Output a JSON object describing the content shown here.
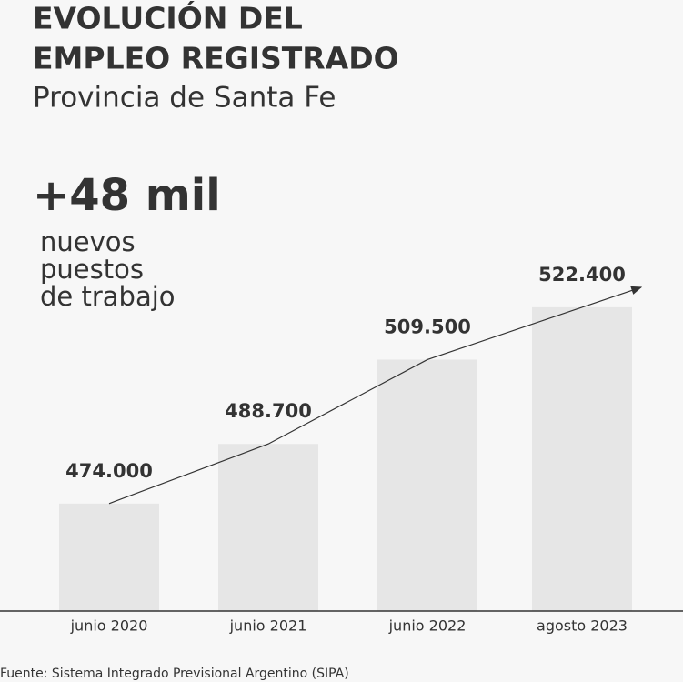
{
  "chart_data": {
    "type": "bar",
    "title": [
      "EVOLUCIÓN DEL",
      "EMPLEO REGISTRADO"
    ],
    "subtitle": "Provincia de Santa Fe",
    "annotation": {
      "headline": "+48 mil",
      "text": [
        "nuevos",
        "puestos",
        "de trabajo"
      ]
    },
    "categories": [
      "junio 2020",
      "junio 2021",
      "junio 2022",
      "agosto 2023"
    ],
    "values": [
      474000,
      488700,
      509500,
      522400
    ],
    "value_labels": [
      "474.000",
      "488.700",
      "509.500",
      "522.400"
    ],
    "color": "#e6e6e6",
    "ylim": [
      447500,
      530000
    ],
    "source": "Fuente: Sistema Integrado Previsional Argentino (SIPA)"
  }
}
